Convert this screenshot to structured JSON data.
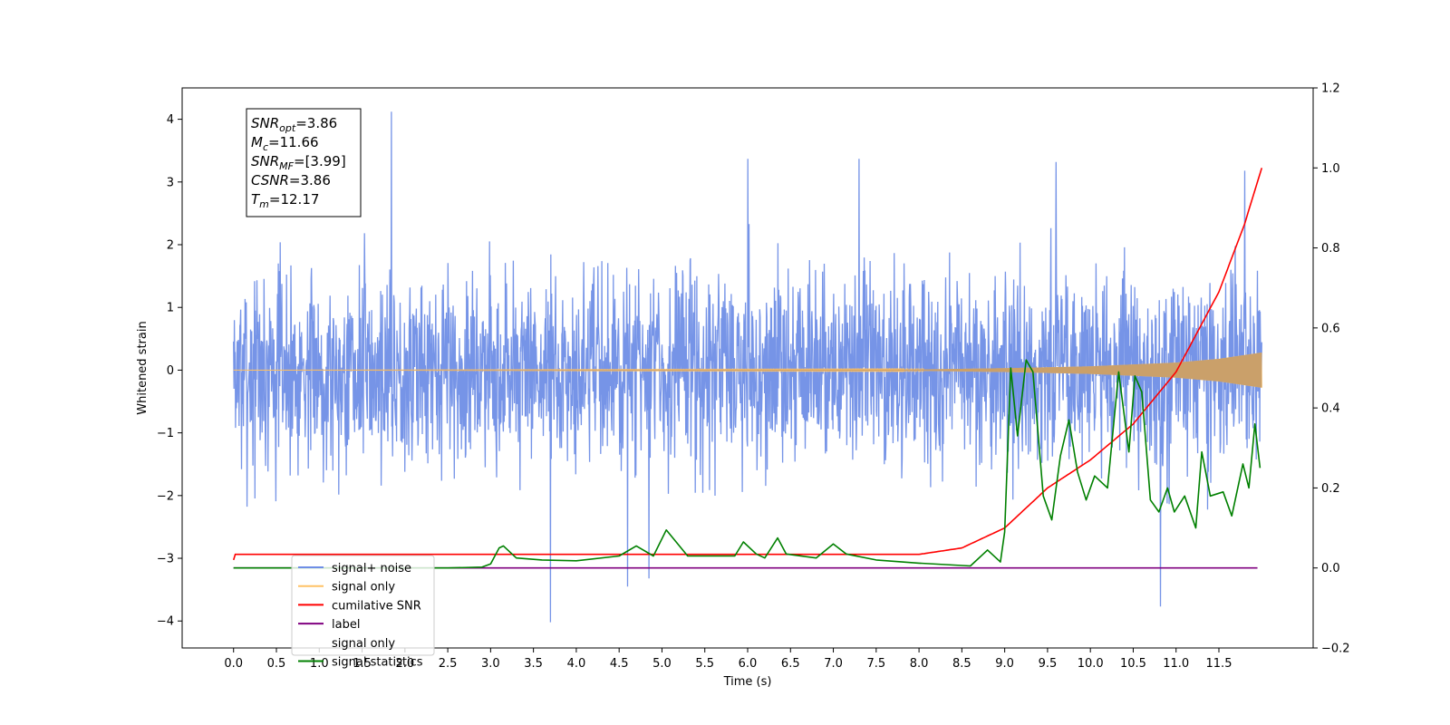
{
  "chart_data": {
    "type": "line",
    "xlabel": "Time (s)",
    "ylabel": "Whitened strain",
    "xlim": [
      -0.6,
      12.6
    ],
    "ylim": [
      -4.43,
      4.5
    ],
    "y2lim": [
      -0.2,
      1.2
    ],
    "x_ticks": [
      0.0,
      0.5,
      1.0,
      1.5,
      2.0,
      2.5,
      3.0,
      3.5,
      4.0,
      4.5,
      5.0,
      5.5,
      6.0,
      6.5,
      7.0,
      7.5,
      8.0,
      8.5,
      9.0,
      9.5,
      10.0,
      10.5,
      11.0,
      11.5
    ],
    "x_tick_labels": [
      "0.0",
      "0.5",
      "1.0",
      "1.5",
      "2.0",
      "2.5",
      "3.0",
      "3.5",
      "4.0",
      "4.5",
      "5.0",
      "5.5",
      "6.0",
      "6.5",
      "7.0",
      "7.5",
      "8.0",
      "8.5",
      "9.0",
      "9.5",
      "10.0",
      "10.5",
      "11.0",
      "11.5"
    ],
    "y_ticks": [
      -4,
      -3,
      -2,
      -1,
      0,
      1,
      2,
      3,
      4
    ],
    "y_tick_labels": [
      "−4",
      "−3",
      "−2",
      "−1",
      "0",
      "1",
      "2",
      "3",
      "4"
    ],
    "y2_ticks": [
      -0.2,
      0.0,
      0.2,
      0.4,
      0.6,
      0.8,
      1.0,
      1.2
    ],
    "y2_tick_labels": [
      "−0.2",
      "0.0",
      "0.2",
      "0.4",
      "0.6",
      "0.8",
      "1.0",
      "1.2"
    ],
    "legend_position": "lower-left",
    "legend": [
      {
        "label": "signal+ noise",
        "color": "#6f8ee6"
      },
      {
        "label": "signal only",
        "color": "#ffc266"
      },
      {
        "label": "cumilative SNR",
        "color": "#ff0000"
      },
      {
        "label": "label",
        "color": "#800080"
      },
      {
        "label": "signal only",
        "color": "#ff9900",
        "hidden_behind_legend": true
      },
      {
        "label": "signal statistics",
        "color": "#008000"
      }
    ],
    "annotation_box": [
      {
        "base": "SNR",
        "sub": "opt",
        "value": "=3.86"
      },
      {
        "base": "M",
        "sub": "c",
        "value": "=11.66"
      },
      {
        "base": "SNR",
        "sub": "MF",
        "value": "=[3.99]"
      },
      {
        "base": "CSNR",
        "sub": "",
        "value": "=3.86"
      },
      {
        "base": "T",
        "sub": "m",
        "value": "=12.17"
      }
    ],
    "series": [
      {
        "name": "signal+ noise",
        "axis": "left",
        "color": "#6f8ee6",
        "x_range": [
          0.0,
          12.0
        ],
        "typical_max": 2.2,
        "typical_min": -2.2,
        "peaks": [
          {
            "x": 1.84,
            "y": 4.12
          },
          {
            "x": 6.0,
            "y": 3.37
          },
          {
            "x": 7.3,
            "y": 3.37
          },
          {
            "x": 9.6,
            "y": 3.32
          },
          {
            "x": 11.8,
            "y": 3.18
          },
          {
            "x": 3.7,
            "y": -4.02
          },
          {
            "x": 10.82,
            "y": -3.77
          },
          {
            "x": 4.85,
            "y": -3.32
          },
          {
            "x": 4.6,
            "y": -3.45
          }
        ]
      },
      {
        "name": "signal only",
        "axis": "left",
        "color": "#ffc266",
        "x_range": [
          0.0,
          12.0
        ],
        "envelope": [
          {
            "x": 0.0,
            "amp": 0.0
          },
          {
            "x": 8.0,
            "amp": 0.01
          },
          {
            "x": 9.0,
            "amp": 0.03
          },
          {
            "x": 10.0,
            "amp": 0.06
          },
          {
            "x": 11.0,
            "amp": 0.12
          },
          {
            "x": 11.5,
            "amp": 0.18
          },
          {
            "x": 12.0,
            "amp": 0.28
          }
        ]
      },
      {
        "name": "cumilative SNR",
        "axis": "right",
        "color": "#ff0000",
        "points": [
          {
            "x": 0.0,
            "y": 0.02
          },
          {
            "x": 0.02,
            "y": 0.034
          },
          {
            "x": 8.0,
            "y": 0.034
          },
          {
            "x": 8.5,
            "y": 0.05
          },
          {
            "x": 9.0,
            "y": 0.1
          },
          {
            "x": 9.5,
            "y": 0.2
          },
          {
            "x": 10.0,
            "y": 0.27
          },
          {
            "x": 10.5,
            "y": 0.36
          },
          {
            "x": 11.0,
            "y": 0.49
          },
          {
            "x": 11.5,
            "y": 0.69
          },
          {
            "x": 11.8,
            "y": 0.86
          },
          {
            "x": 12.0,
            "y": 1.0
          }
        ]
      },
      {
        "name": "label",
        "axis": "right",
        "color": "#800080",
        "points": [
          {
            "x": 0.0,
            "y": 0.0
          },
          {
            "x": 11.95,
            "y": 0.0
          }
        ]
      },
      {
        "name": "signal statistics",
        "axis": "right",
        "color": "#008000",
        "points": [
          {
            "x": 0.0,
            "y": 0.0
          },
          {
            "x": 2.5,
            "y": 0.0
          },
          {
            "x": 2.9,
            "y": 0.002
          },
          {
            "x": 3.0,
            "y": 0.01
          },
          {
            "x": 3.1,
            "y": 0.05
          },
          {
            "x": 3.15,
            "y": 0.055
          },
          {
            "x": 3.3,
            "y": 0.025
          },
          {
            "x": 3.6,
            "y": 0.02
          },
          {
            "x": 4.0,
            "y": 0.018
          },
          {
            "x": 4.5,
            "y": 0.03
          },
          {
            "x": 4.7,
            "y": 0.055
          },
          {
            "x": 4.9,
            "y": 0.03
          },
          {
            "x": 5.05,
            "y": 0.095
          },
          {
            "x": 5.3,
            "y": 0.03
          },
          {
            "x": 5.6,
            "y": 0.03
          },
          {
            "x": 5.85,
            "y": 0.03
          },
          {
            "x": 5.95,
            "y": 0.065
          },
          {
            "x": 6.1,
            "y": 0.035
          },
          {
            "x": 6.2,
            "y": 0.025
          },
          {
            "x": 6.35,
            "y": 0.075
          },
          {
            "x": 6.45,
            "y": 0.035
          },
          {
            "x": 6.8,
            "y": 0.025
          },
          {
            "x": 7.0,
            "y": 0.06
          },
          {
            "x": 7.15,
            "y": 0.035
          },
          {
            "x": 7.5,
            "y": 0.02
          },
          {
            "x": 8.0,
            "y": 0.012
          },
          {
            "x": 8.6,
            "y": 0.005
          },
          {
            "x": 8.8,
            "y": 0.045
          },
          {
            "x": 8.95,
            "y": 0.015
          },
          {
            "x": 9.0,
            "y": 0.09
          },
          {
            "x": 9.07,
            "y": 0.5
          },
          {
            "x": 9.15,
            "y": 0.33
          },
          {
            "x": 9.25,
            "y": 0.52
          },
          {
            "x": 9.33,
            "y": 0.49
          },
          {
            "x": 9.45,
            "y": 0.18
          },
          {
            "x": 9.55,
            "y": 0.12
          },
          {
            "x": 9.65,
            "y": 0.28
          },
          {
            "x": 9.75,
            "y": 0.37
          },
          {
            "x": 9.85,
            "y": 0.24
          },
          {
            "x": 9.95,
            "y": 0.17
          },
          {
            "x": 10.05,
            "y": 0.23
          },
          {
            "x": 10.2,
            "y": 0.2
          },
          {
            "x": 10.33,
            "y": 0.49
          },
          {
            "x": 10.45,
            "y": 0.29
          },
          {
            "x": 10.52,
            "y": 0.48
          },
          {
            "x": 10.6,
            "y": 0.44
          },
          {
            "x": 10.7,
            "y": 0.17
          },
          {
            "x": 10.8,
            "y": 0.14
          },
          {
            "x": 10.9,
            "y": 0.2
          },
          {
            "x": 10.98,
            "y": 0.14
          },
          {
            "x": 11.1,
            "y": 0.18
          },
          {
            "x": 11.23,
            "y": 0.1
          },
          {
            "x": 11.3,
            "y": 0.29
          },
          {
            "x": 11.4,
            "y": 0.18
          },
          {
            "x": 11.55,
            "y": 0.19
          },
          {
            "x": 11.65,
            "y": 0.13
          },
          {
            "x": 11.78,
            "y": 0.26
          },
          {
            "x": 11.85,
            "y": 0.2
          },
          {
            "x": 11.92,
            "y": 0.36
          },
          {
            "x": 11.98,
            "y": 0.25
          }
        ]
      }
    ]
  }
}
